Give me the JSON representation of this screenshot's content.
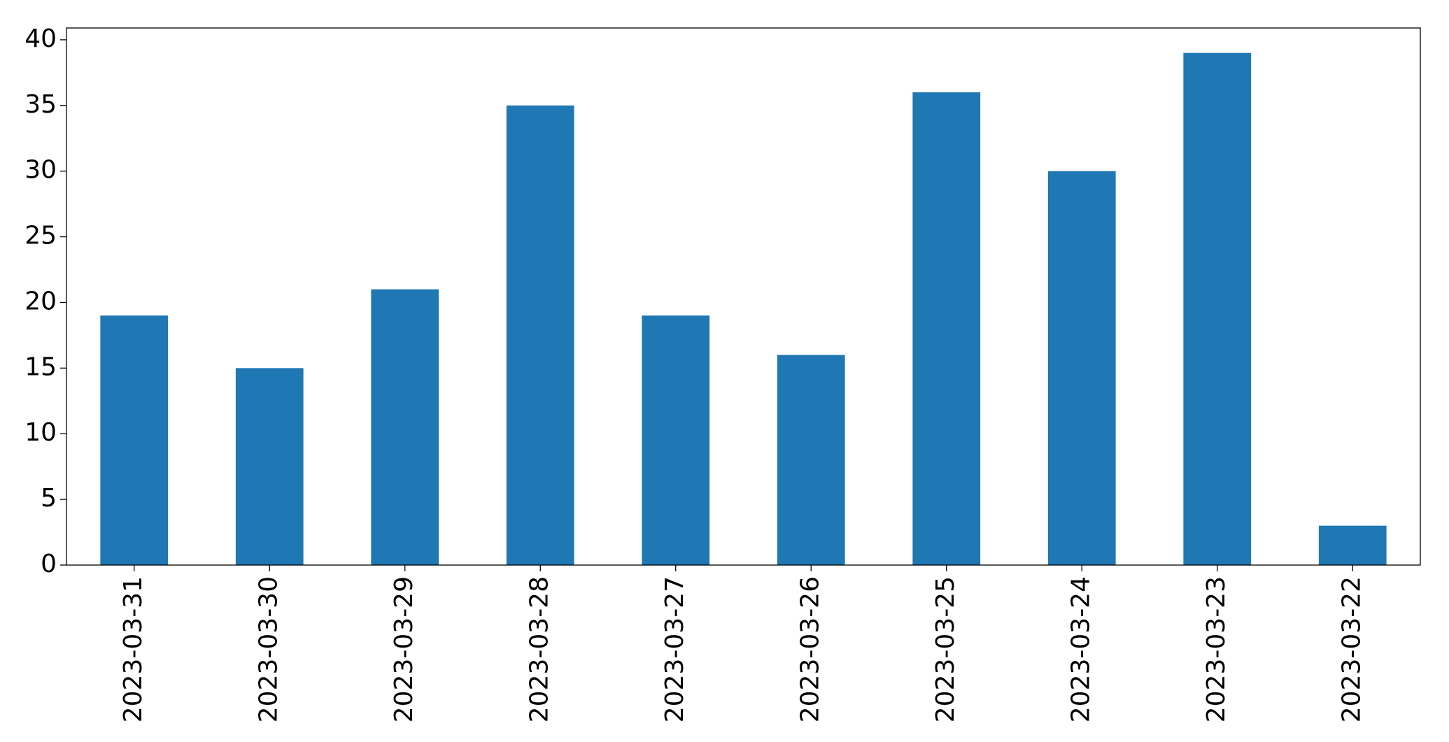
{
  "chart_data": {
    "type": "bar",
    "categories": [
      "2023-03-31",
      "2023-03-30",
      "2023-03-29",
      "2023-03-28",
      "2023-03-27",
      "2023-03-26",
      "2023-03-25",
      "2023-03-24",
      "2023-03-23",
      "2023-03-22"
    ],
    "values": [
      19,
      15,
      21,
      35,
      19,
      16,
      36,
      30,
      39,
      3
    ],
    "color": "#1f77b4",
    "ylim": [
      0,
      40.9
    ],
    "yticks": [
      0,
      5,
      10,
      15,
      20,
      25,
      30,
      35,
      40
    ],
    "grid": false
  }
}
